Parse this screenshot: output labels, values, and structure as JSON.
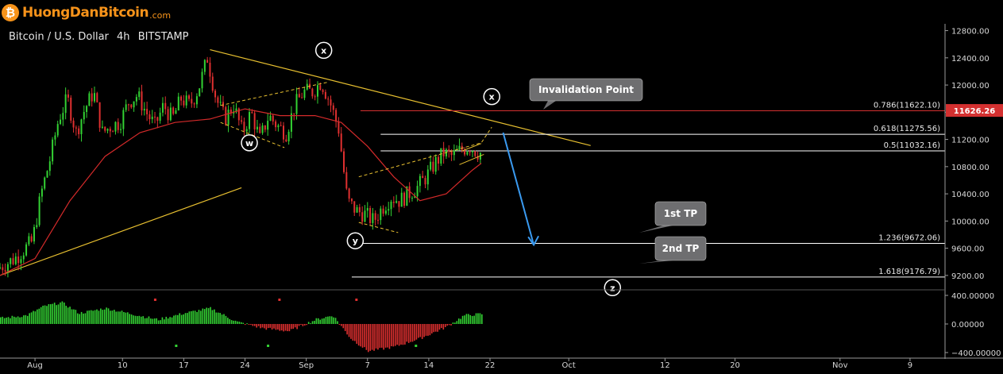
{
  "header": {
    "logo_icon": "bitcoin-icon",
    "logo_letter": "₿",
    "logo_text": "HuongDanBitcoin",
    "logo_suffix": ".com",
    "symbol_label": "Bitcoin / U.S. Dollar",
    "interval": "4h",
    "exchange": "BITSTAMP"
  },
  "colors": {
    "background": "#000000",
    "candle_up": "#33d233",
    "candle_down": "#e03030",
    "moving_average": "#d42a2a",
    "trendline": "#e8c030",
    "fib_line": "#ffffff",
    "invalidation_line": "#d43030",
    "projection_arrow": "#3a9af0",
    "callout_bg": "#6e6e70",
    "price_tag": "#d43030"
  },
  "chart_data": {
    "type": "candlestick",
    "title": "Bitcoin / U.S. Dollar  4h  BITSTAMP",
    "ylim": [
      9000,
      12900
    ],
    "y_ticks": [
      12800,
      12400,
      12000,
      11600,
      11200,
      10800,
      10400,
      10000,
      9600,
      9200
    ],
    "y_tick_labels": [
      "12800.00",
      "12400.00",
      "12000.00",
      "11600.00",
      "11200.00",
      "10800.00",
      "10400.00",
      "10000.00",
      "9600.00",
      "9200.00"
    ],
    "x_tick_labels": [
      "Aug",
      "10",
      "17",
      "24",
      "Sep",
      "7",
      "14",
      "22",
      "Oct",
      "12",
      "20",
      "Nov",
      "9"
    ],
    "x_tick_days": [
      0,
      10,
      17,
      24,
      31,
      38,
      45,
      52,
      61,
      72,
      80,
      92,
      100
    ],
    "x_range_days": [
      -4,
      104
    ],
    "price_path": [
      [
        -4,
        9300
      ],
      [
        -2,
        9450
      ],
      [
        0,
        9700
      ],
      [
        1,
        10400
      ],
      [
        2,
        10900
      ],
      [
        3,
        11500
      ],
      [
        4,
        11800
      ],
      [
        5,
        11300
      ],
      [
        6,
        11650
      ],
      [
        7,
        11900
      ],
      [
        8,
        11300
      ],
      [
        9,
        11400
      ],
      [
        10,
        11450
      ],
      [
        11,
        11750
      ],
      [
        12,
        11850
      ],
      [
        13,
        11600
      ],
      [
        14,
        11400
      ],
      [
        15,
        11700
      ],
      [
        16,
        11500
      ],
      [
        17,
        11800
      ],
      [
        18,
        11700
      ],
      [
        19,
        11950
      ],
      [
        20,
        12400
      ],
      [
        21,
        11800
      ],
      [
        22,
        11500
      ],
      [
        23,
        11700
      ],
      [
        24,
        11300
      ],
      [
        25,
        11600
      ],
      [
        26,
        11200
      ],
      [
        27,
        11550
      ],
      [
        28,
        11400
      ],
      [
        29,
        11300
      ],
      [
        30,
        11700
      ],
      [
        31,
        11900
      ],
      [
        32,
        11900
      ],
      [
        33,
        12050
      ],
      [
        34,
        11750
      ],
      [
        35,
        11350
      ],
      [
        36,
        10300
      ],
      [
        37,
        10150
      ],
      [
        38,
        10100
      ],
      [
        39,
        10000
      ],
      [
        40,
        10200
      ],
      [
        41,
        10350
      ],
      [
        42,
        10300
      ],
      [
        43,
        10400
      ],
      [
        44,
        10500
      ],
      [
        45,
        10650
      ],
      [
        46,
        10850
      ],
      [
        47,
        11000
      ],
      [
        48,
        10950
      ],
      [
        49,
        11050
      ],
      [
        50,
        11100
      ],
      [
        51,
        11000
      ]
    ],
    "moving_average_path": [
      [
        -4,
        9200
      ],
      [
        0,
        9450
      ],
      [
        4,
        10300
      ],
      [
        8,
        10950
      ],
      [
        12,
        11300
      ],
      [
        16,
        11450
      ],
      [
        20,
        11500
      ],
      [
        24,
        11650
      ],
      [
        28,
        11550
      ],
      [
        32,
        11550
      ],
      [
        35,
        11450
      ],
      [
        38,
        11100
      ],
      [
        41,
        10650
      ],
      [
        44,
        10300
      ],
      [
        47,
        10400
      ],
      [
        50,
        10750
      ],
      [
        51,
        10850
      ]
    ],
    "oscillator": {
      "ylim": [
        -400,
        400
      ],
      "y_ticks": [
        400,
        0,
        -400
      ],
      "y_tick_labels": [
        "400.00000",
        "0.00000",
        "−400.00000"
      ],
      "path": [
        [
          -4,
          80
        ],
        [
          -1,
          120
        ],
        [
          1,
          250
        ],
        [
          3,
          300
        ],
        [
          5,
          150
        ],
        [
          8,
          220
        ],
        [
          11,
          140
        ],
        [
          14,
          60
        ],
        [
          17,
          150
        ],
        [
          20,
          220
        ],
        [
          23,
          30
        ],
        [
          26,
          -60
        ],
        [
          29,
          -100
        ],
        [
          32,
          60
        ],
        [
          34,
          120
        ],
        [
          36,
          -200
        ],
        [
          38,
          -380
        ],
        [
          41,
          -320
        ],
        [
          44,
          -200
        ],
        [
          47,
          -40
        ],
        [
          49,
          120
        ],
        [
          51,
          140
        ]
      ]
    },
    "fib_levels": [
      {
        "label": "0.786(11622.10)",
        "price": 11622.1
      },
      {
        "label": "0.618(11275.56)",
        "price": 11275.56
      },
      {
        "label": "0.5(11032.16)",
        "price": 11032.16
      },
      {
        "label": "1.236(9672.06)",
        "price": 9672.06
      },
      {
        "label": "1.618(9176.79)",
        "price": 9176.79
      }
    ],
    "current_price_label": "11626.26",
    "current_price": 11626.26,
    "wave_labels": [
      "x",
      "w",
      "x",
      "y",
      "z"
    ],
    "callouts": [
      "Invalidation Point",
      "1st TP",
      "2nd TP"
    ]
  }
}
